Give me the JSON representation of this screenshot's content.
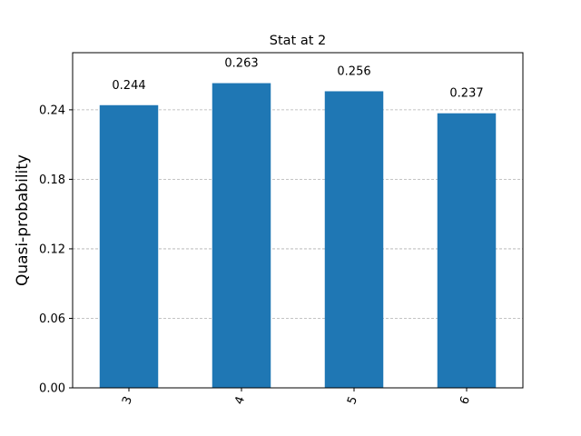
{
  "chart_data": {
    "type": "bar",
    "title": "Stat at 2",
    "xlabel": "",
    "ylabel": "Quasi-probability",
    "categories": [
      "3",
      "4",
      "5",
      "6"
    ],
    "values": [
      0.244,
      0.263,
      0.256,
      0.237
    ],
    "value_labels": [
      "0.244",
      "0.263",
      "0.256",
      "0.237"
    ],
    "ylim": [
      0,
      0.2893
    ],
    "yticks": [
      0,
      0.06,
      0.12,
      0.18,
      0.24
    ],
    "ytick_labels": [
      "0.00",
      "0.06",
      "0.12",
      "0.18",
      "0.24"
    ],
    "x_tick_rotation_deg": 70,
    "grid": "y-dashed",
    "legend": "none",
    "bar_color": "#1f77b4",
    "grid_color": "#b0b0b0"
  }
}
